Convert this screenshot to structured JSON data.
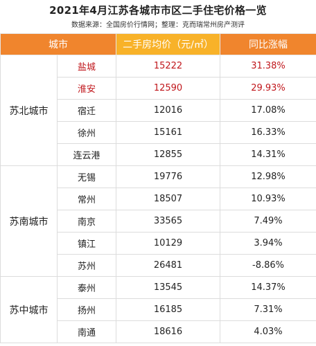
{
  "title": "2021年4月江苏各城市市区二手住宅价格一览",
  "source": "数据来源：全国房价行情网；整理：克而瑞常州房产测评",
  "columns": [
    "城市",
    "二手房均价（元/㎡）",
    "同比涨幅"
  ],
  "colors": {
    "header_orange": "#f0852d",
    "header_yellow": "#f8b229",
    "highlight_red": "#c0161b"
  },
  "groups": [
    {
      "region": "苏北城市",
      "rows": [
        {
          "city": "盐城",
          "price": "15222",
          "yoy": "31.38%",
          "highlight": true
        },
        {
          "city": "淮安",
          "price": "12590",
          "yoy": "29.93%",
          "highlight": true
        },
        {
          "city": "宿迁",
          "price": "12016",
          "yoy": "17.08%",
          "highlight": false
        },
        {
          "city": "徐州",
          "price": "15161",
          "yoy": "16.33%",
          "highlight": false
        },
        {
          "city": "连云港",
          "price": "12855",
          "yoy": "14.31%",
          "highlight": false
        }
      ]
    },
    {
      "region": "苏南城市",
      "rows": [
        {
          "city": "无锡",
          "price": "19776",
          "yoy": "12.98%",
          "highlight": false
        },
        {
          "city": "常州",
          "price": "18507",
          "yoy": "10.93%",
          "highlight": false
        },
        {
          "city": "南京",
          "price": "33565",
          "yoy": "7.49%",
          "highlight": false
        },
        {
          "city": "镇江",
          "price": "10129",
          "yoy": "3.94%",
          "highlight": false
        },
        {
          "city": "苏州",
          "price": "26481",
          "yoy": "-8.86%",
          "highlight": false
        }
      ]
    },
    {
      "region": "苏中城市",
      "rows": [
        {
          "city": "泰州",
          "price": "13545",
          "yoy": "14.37%",
          "highlight": false
        },
        {
          "city": "扬州",
          "price": "16185",
          "yoy": "7.31%",
          "highlight": false
        },
        {
          "city": "南通",
          "price": "18616",
          "yoy": "4.03%",
          "highlight": false
        }
      ]
    }
  ]
}
